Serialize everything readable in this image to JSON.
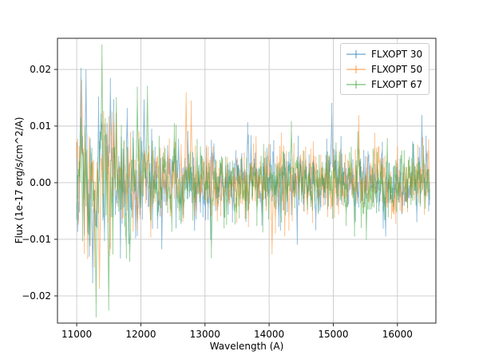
{
  "window": {
    "background": "#ffffff"
  },
  "chart_data": {
    "type": "line",
    "title": "",
    "xlabel": "Wavelength (A)",
    "ylabel": "Flux (1e-17 erg/s/cm^2/A)",
    "xlim": [
      10700,
      16600
    ],
    "ylim": [
      -0.0248,
      0.0255
    ],
    "grid": true,
    "legend_position": "upper right",
    "xticks": {
      "values": [
        11000,
        12000,
        13000,
        14000,
        15000,
        16000
      ],
      "labels": [
        "11000",
        "12000",
        "13000",
        "14000",
        "15000",
        "16000"
      ]
    },
    "yticks": {
      "values": [
        0.02,
        0.01,
        0.0,
        -0.01,
        -0.02
      ],
      "labels": [
        "0.02",
        "0.01",
        "0.00",
        "−0.01",
        "−0.02"
      ]
    },
    "x_start": 11000,
    "x_end": 16500,
    "n_points": 420,
    "noise_std_envelope": {
      "x": [
        11000,
        11500,
        12000,
        12500,
        13000,
        14000,
        15000,
        16000,
        16500
      ],
      "std": [
        0.0062,
        0.0057,
        0.0044,
        0.0036,
        0.003,
        0.0029,
        0.0028,
        0.0027,
        0.0028
      ]
    },
    "errorbar_std": 0.0014,
    "series": [
      {
        "name": "FLXOPT 30",
        "color": "#1f77b4",
        "opacity": 0.5,
        "seed": 1030,
        "peaks": [
          {
            "x": 11060,
            "y": 0.019
          },
          {
            "x": 11150,
            "y": 0.0185
          },
          {
            "x": 11250,
            "y": -0.016
          },
          {
            "x": 11520,
            "y": 0.0165
          },
          {
            "x": 12050,
            "y": 0.014
          },
          {
            "x": 14980,
            "y": 0.0125
          },
          {
            "x": 16380,
            "y": 0.0105
          }
        ]
      },
      {
        "name": "FLXOPT 50",
        "color": "#ff7f0e",
        "opacity": 0.5,
        "seed": 1050,
        "peaks": [
          {
            "x": 11080,
            "y": 0.017
          },
          {
            "x": 11350,
            "y": -0.018
          },
          {
            "x": 12700,
            "y": 0.0152
          },
          {
            "x": 12780,
            "y": 0.013
          },
          {
            "x": 14050,
            "y": -0.0115
          },
          {
            "x": 15400,
            "y": 0.0105
          }
        ]
      },
      {
        "name": "FLXOPT 67",
        "color": "#2ca02c",
        "opacity": 0.5,
        "seed": 1067,
        "peaks": [
          {
            "x": 11300,
            "y": -0.022
          },
          {
            "x": 11400,
            "y": 0.023
          },
          {
            "x": 11500,
            "y": -0.021
          },
          {
            "x": 11950,
            "y": 0.015
          },
          {
            "x": 12100,
            "y": 0.016
          },
          {
            "x": 13100,
            "y": -0.012
          },
          {
            "x": 14350,
            "y": 0.0095
          }
        ]
      }
    ],
    "description": "Three overlaid noisy error-bar spectra centered on zero flux; scatter amplitude is largest near 11000 A (up to about +/-0.02) and shrinks to roughly +/-0.008 at longer wavelengths. Individual samples are not resolvable at screenshot scale and are synthesized from the std envelope."
  }
}
